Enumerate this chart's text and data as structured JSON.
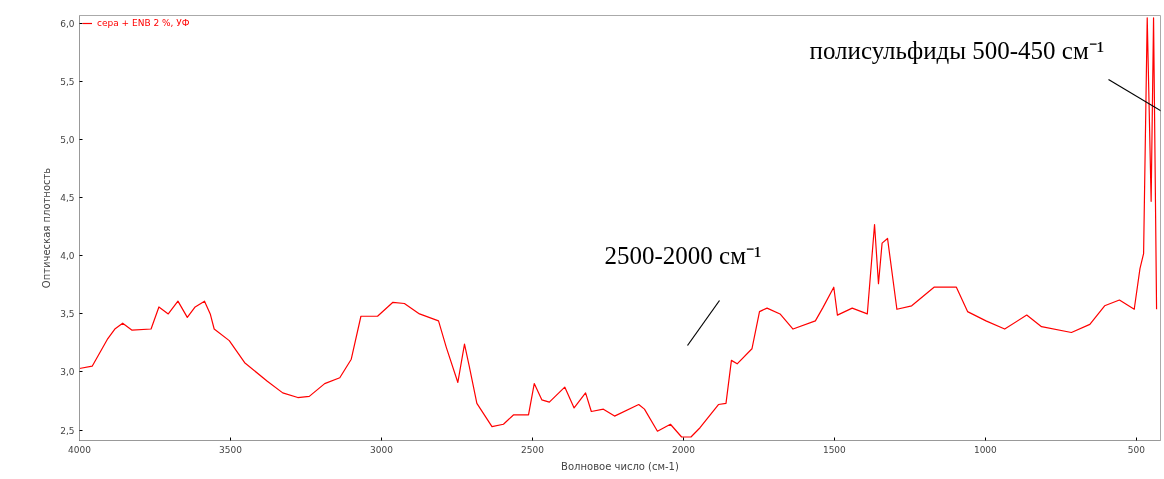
{
  "chart_data": {
    "type": "line",
    "xlabel": "Волновое число (см-1)",
    "ylabel": "Оптическая плотность",
    "xlim": [
      4000,
      420
    ],
    "ylim": [
      2.41,
      6.07
    ],
    "xticks": [
      4000,
      3500,
      3000,
      2500,
      2000,
      1500,
      1000,
      500
    ],
    "yticks": [
      {
        "value": 2.5,
        "label": "2,5"
      },
      {
        "value": 3.0,
        "label": "3,0"
      },
      {
        "value": 3.5,
        "label": "3,5"
      },
      {
        "value": 4.0,
        "label": "4,0"
      },
      {
        "value": 4.5,
        "label": "4,5"
      },
      {
        "value": 5.0,
        "label": "5,0"
      },
      {
        "value": 5.5,
        "label": "5,5"
      },
      {
        "value": 6.0,
        "label": "6,0"
      }
    ],
    "grid": false,
    "legend": "top left",
    "marker": "none",
    "line_style": "solid",
    "series": [
      {
        "name": "сера + ENB 2 %, УФ",
        "color": "#ff0000",
        "x": [
          4000,
          3958,
          3908,
          3883,
          3857,
          3826,
          3763,
          3737,
          3706,
          3674,
          3643,
          3617,
          3586,
          3567,
          3554,
          3504,
          3453,
          3378,
          3327,
          3277,
          3239,
          3188,
          3138,
          3100,
          3068,
          3013,
          2962,
          2924,
          2874,
          2811,
          2785,
          2747,
          2725,
          2710,
          2684,
          2634,
          2596,
          2563,
          2513,
          2494,
          2469,
          2444,
          2393,
          2362,
          2324,
          2305,
          2265,
          2228,
          2148,
          2129,
          2086,
          2043,
          2006,
          1975,
          1945,
          1884,
          1859,
          1841,
          1822,
          1773,
          1748,
          1723,
          1680,
          1637,
          1563,
          1539,
          1502,
          1490,
          1441,
          1391,
          1367,
          1354,
          1342,
          1324,
          1293,
          1244,
          1170,
          1096,
          1059,
          998,
          936,
          863,
          814,
          715,
          654,
          605,
          556,
          507,
          488,
          476,
          464,
          451,
          443,
          433
        ],
        "values": [
          3.03,
          3.05,
          3.28,
          3.37,
          3.42,
          3.36,
          3.37,
          3.56,
          3.5,
          3.61,
          3.47,
          3.56,
          3.61,
          3.5,
          3.37,
          3.27,
          3.08,
          2.92,
          2.82,
          2.78,
          2.79,
          2.9,
          2.95,
          3.11,
          3.48,
          3.48,
          3.6,
          3.59,
          3.5,
          3.44,
          3.21,
          2.91,
          3.24,
          3.06,
          2.73,
          2.53,
          2.55,
          2.63,
          2.63,
          2.9,
          2.76,
          2.74,
          2.87,
          2.69,
          2.82,
          2.66,
          2.68,
          2.62,
          2.72,
          2.68,
          2.49,
          2.55,
          2.44,
          2.44,
          2.52,
          2.72,
          2.73,
          3.1,
          3.07,
          3.2,
          3.52,
          3.55,
          3.5,
          3.37,
          3.44,
          3.55,
          3.73,
          3.49,
          3.55,
          3.5,
          4.27,
          3.76,
          4.11,
          4.15,
          3.54,
          3.57,
          3.73,
          3.73,
          3.52,
          3.44,
          3.37,
          3.49,
          3.39,
          3.34,
          3.41,
          3.57,
          3.62,
          3.54,
          3.89,
          4.02,
          6.05,
          4.47,
          6.05,
          3.54
        ]
      }
    ],
    "annotations": [
      "2500-2000 см⁻¹",
      "полисульфиды 500-450 см⁻¹"
    ]
  }
}
